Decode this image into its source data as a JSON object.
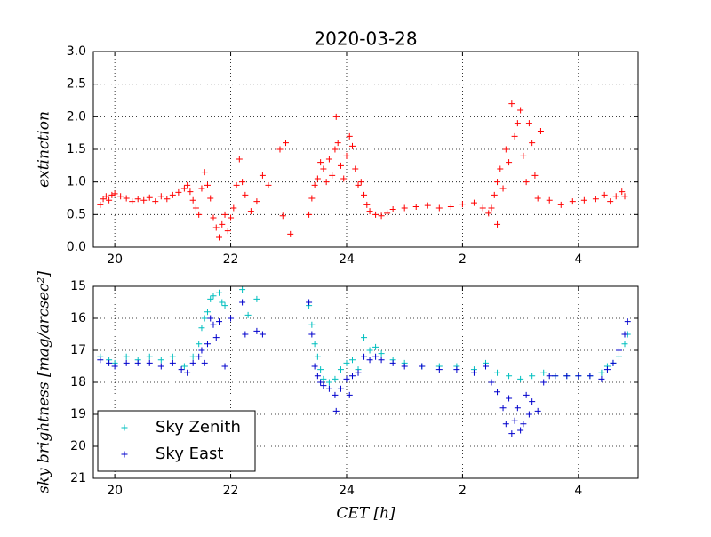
{
  "chart_data": [
    {
      "type": "scatter",
      "title": "2020-03-28",
      "ylabel": "extinction",
      "color": "#ff0000",
      "grid": true,
      "xlim": [
        19.63,
        29.03
      ],
      "xticks": [
        20,
        22,
        24,
        {
          "value": 26,
          "label": "2"
        },
        {
          "value": 28,
          "label": "4"
        }
      ],
      "ylim": [
        0,
        3
      ],
      "yticks": [
        {
          "value": 0,
          "label": "0.0"
        },
        0.5,
        {
          "value": 1,
          "label": "1.0"
        },
        1.5,
        {
          "value": 2,
          "label": "2.0"
        },
        2.5,
        {
          "value": 3,
          "label": "3.0"
        }
      ],
      "x": [
        19.75,
        19.8,
        19.85,
        19.9,
        19.95,
        20.0,
        20.1,
        20.2,
        20.3,
        20.4,
        20.5,
        20.6,
        20.7,
        20.8,
        20.9,
        21.0,
        21.1,
        21.2,
        21.25,
        21.3,
        21.35,
        21.4,
        21.45,
        21.5,
        21.55,
        21.6,
        21.65,
        21.7,
        21.75,
        21.8,
        21.85,
        21.9,
        21.95,
        22.0,
        22.05,
        22.1,
        22.15,
        22.2,
        22.25,
        22.35,
        22.45,
        22.55,
        22.65,
        22.85,
        22.95,
        22.9,
        23.03,
        23.35,
        23.4,
        23.45,
        23.5,
        23.55,
        23.6,
        23.65,
        23.7,
        23.75,
        23.8,
        23.82,
        23.85,
        23.9,
        23.95,
        24.0,
        24.05,
        24.1,
        24.15,
        24.2,
        24.25,
        24.3,
        24.35,
        24.4,
        24.5,
        24.6,
        24.7,
        24.8,
        25.0,
        25.2,
        25.4,
        25.6,
        25.8,
        26.0,
        26.2,
        26.35,
        26.45,
        26.5,
        26.55,
        26.6,
        26.65,
        26.7,
        26.75,
        26.8,
        26.85,
        26.9,
        26.95,
        27.0,
        27.05,
        27.1,
        27.15,
        27.2,
        27.25,
        27.35,
        27.3,
        27.5,
        27.7,
        27.9,
        28.1,
        28.3,
        28.45,
        28.55,
        28.65,
        28.75,
        28.8,
        26.6
      ],
      "values": [
        0.65,
        0.74,
        0.78,
        0.72,
        0.8,
        0.82,
        0.78,
        0.75,
        0.7,
        0.74,
        0.72,
        0.76,
        0.7,
        0.78,
        0.74,
        0.8,
        0.84,
        0.9,
        0.95,
        0.85,
        0.72,
        0.6,
        0.5,
        0.9,
        1.15,
        0.95,
        0.75,
        0.45,
        0.3,
        0.15,
        0.35,
        0.5,
        0.25,
        0.45,
        0.6,
        0.95,
        1.35,
        1.0,
        0.8,
        0.55,
        0.7,
        1.1,
        0.95,
        1.5,
        1.6,
        0.48,
        0.2,
        0.5,
        0.75,
        0.95,
        1.05,
        1.3,
        1.2,
        1.0,
        1.35,
        1.1,
        1.5,
        2.0,
        1.6,
        1.25,
        1.05,
        1.4,
        1.7,
        1.55,
        1.2,
        0.95,
        1.0,
        0.8,
        0.65,
        0.55,
        0.5,
        0.48,
        0.52,
        0.58,
        0.6,
        0.62,
        0.64,
        0.6,
        0.62,
        0.66,
        0.68,
        0.6,
        0.52,
        0.6,
        0.8,
        1.0,
        1.2,
        0.9,
        1.5,
        1.3,
        2.2,
        1.7,
        1.9,
        2.1,
        1.4,
        1.0,
        1.9,
        1.6,
        1.1,
        1.78,
        0.75,
        0.72,
        0.65,
        0.7,
        0.72,
        0.74,
        0.8,
        0.7,
        0.78,
        0.85,
        0.78,
        0.35
      ]
    },
    {
      "type": "scatter",
      "ylabel": "sky brightness [mag/arcsec²]",
      "xlabel": "CET [h]",
      "grid": true,
      "legend": "lower left",
      "xlim": [
        19.63,
        29.03
      ],
      "xticks": [
        20,
        22,
        24,
        {
          "value": 26,
          "label": "2"
        },
        {
          "value": 28,
          "label": "4"
        }
      ],
      "ylim": [
        21,
        15
      ],
      "yticks": [
        15,
        16,
        17,
        18,
        19,
        20,
        21
      ],
      "series": [
        {
          "name": "Sky Zenith",
          "color": "#00bfbf",
          "x": [
            19.75,
            19.9,
            20.0,
            20.2,
            20.4,
            20.6,
            20.8,
            21.0,
            21.2,
            21.35,
            21.45,
            21.5,
            21.55,
            21.6,
            21.65,
            21.7,
            21.8,
            21.85,
            21.9,
            22.2,
            22.45,
            22.3,
            23.35,
            23.4,
            23.45,
            23.5,
            23.55,
            23.6,
            23.7,
            23.8,
            23.9,
            24.0,
            24.1,
            24.2,
            24.3,
            24.4,
            24.5,
            24.6,
            24.8,
            25.0,
            25.3,
            25.6,
            25.9,
            26.2,
            26.4,
            26.6,
            26.8,
            27.0,
            27.2,
            27.4,
            27.6,
            27.8,
            28.0,
            28.2,
            28.4,
            28.5,
            28.6,
            28.7,
            28.8,
            28.85
          ],
          "values": [
            17.2,
            17.3,
            17.4,
            17.2,
            17.3,
            17.2,
            17.3,
            17.2,
            17.5,
            17.2,
            16.8,
            16.3,
            16.0,
            15.8,
            15.4,
            15.3,
            15.2,
            15.5,
            15.6,
            15.1,
            15.4,
            15.9,
            15.6,
            16.2,
            16.8,
            17.2,
            17.6,
            17.9,
            18.0,
            17.9,
            17.6,
            17.4,
            17.3,
            17.6,
            16.6,
            17.0,
            16.9,
            17.1,
            17.3,
            17.4,
            17.5,
            17.5,
            17.5,
            17.6,
            17.4,
            17.7,
            17.8,
            17.9,
            17.8,
            17.7,
            17.8,
            17.8,
            17.8,
            17.8,
            17.7,
            17.5,
            17.4,
            17.2,
            16.8,
            16.5
          ]
        },
        {
          "name": "Sky East",
          "color": "#0000cc",
          "x": [
            19.75,
            19.9,
            20.0,
            20.2,
            20.4,
            20.6,
            20.8,
            21.0,
            21.15,
            21.25,
            21.35,
            21.45,
            21.5,
            21.55,
            21.6,
            21.65,
            21.7,
            21.75,
            21.8,
            21.9,
            22.2,
            22.25,
            22.45,
            22.55,
            22.0,
            23.35,
            23.4,
            23.45,
            23.5,
            23.55,
            23.6,
            23.7,
            23.8,
            23.82,
            23.9,
            24.0,
            24.05,
            24.1,
            24.2,
            24.3,
            24.4,
            24.5,
            24.6,
            24.8,
            25.0,
            25.3,
            25.6,
            25.9,
            26.2,
            26.4,
            26.5,
            26.6,
            26.7,
            26.75,
            26.8,
            26.85,
            26.9,
            26.95,
            27.0,
            27.05,
            27.1,
            27.15,
            27.2,
            27.3,
            27.4,
            27.5,
            27.6,
            27.8,
            28.0,
            28.2,
            28.4,
            28.5,
            28.6,
            28.7,
            28.8,
            28.85
          ],
          "values": [
            17.3,
            17.4,
            17.5,
            17.4,
            17.4,
            17.4,
            17.5,
            17.4,
            17.6,
            17.7,
            17.4,
            17.2,
            17.0,
            17.4,
            16.8,
            16.0,
            16.2,
            16.6,
            16.1,
            17.5,
            15.5,
            16.5,
            16.4,
            16.5,
            16.0,
            15.5,
            16.5,
            17.5,
            17.8,
            18.0,
            18.1,
            18.2,
            18.4,
            18.9,
            18.2,
            17.9,
            18.4,
            17.8,
            17.7,
            17.2,
            17.3,
            17.2,
            17.3,
            17.4,
            17.5,
            17.5,
            17.6,
            17.6,
            17.7,
            17.5,
            18.0,
            18.3,
            18.8,
            19.3,
            18.5,
            19.6,
            19.2,
            18.8,
            19.5,
            19.3,
            18.4,
            19.0,
            18.6,
            18.9,
            18.0,
            17.8,
            17.8,
            17.8,
            17.8,
            17.8,
            17.9,
            17.6,
            17.4,
            17.0,
            16.5,
            16.1
          ]
        }
      ]
    }
  ]
}
